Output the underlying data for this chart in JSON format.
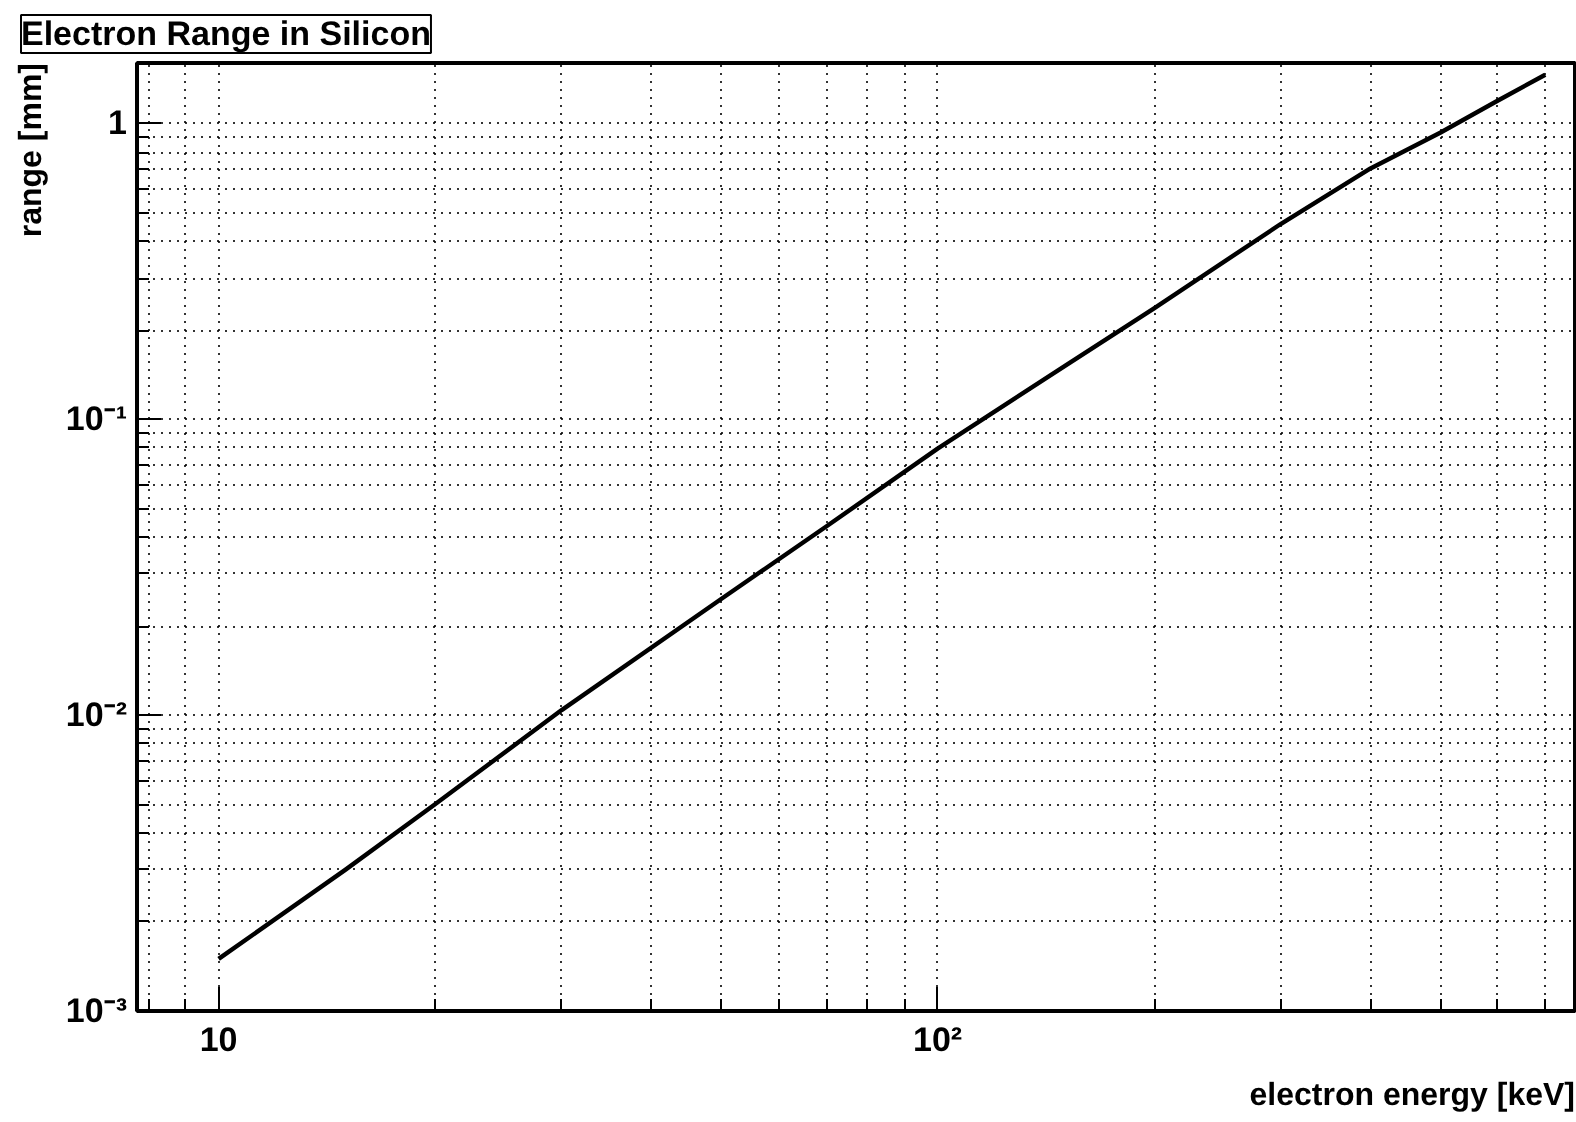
{
  "chart_data": {
    "type": "line",
    "title": "Electron Range in Silicon",
    "xlabel": "electron energy [keV]",
    "ylabel": "range [mm]",
    "log": "xy",
    "grid": true,
    "marker": "none",
    "line_style": "solid",
    "x": [
      10,
      15,
      20,
      30,
      50,
      70,
      100,
      150,
      200,
      300,
      400,
      500,
      600,
      700
    ],
    "series": [
      {
        "color": "#000000",
        "values": [
          0.0015,
          0.003,
          0.005,
          0.0104,
          0.0247,
          0.0434,
          0.0796,
          0.151,
          0.237,
          0.457,
          0.704,
          0.93,
          1.19,
          1.46
        ]
      }
    ],
    "xlim": [
      7.7,
      770
    ],
    "ylim": [
      0.001,
      1.6
    ],
    "xticks": [
      10,
      {
        "value": 100,
        "label": "10²"
      }
    ],
    "yticks": [
      {
        "value": 0.001,
        "label": "10⁻³"
      },
      {
        "value": 0.01,
        "label": "10⁻²"
      },
      {
        "value": 0.1,
        "label": "10⁻¹"
      },
      1
    ]
  }
}
